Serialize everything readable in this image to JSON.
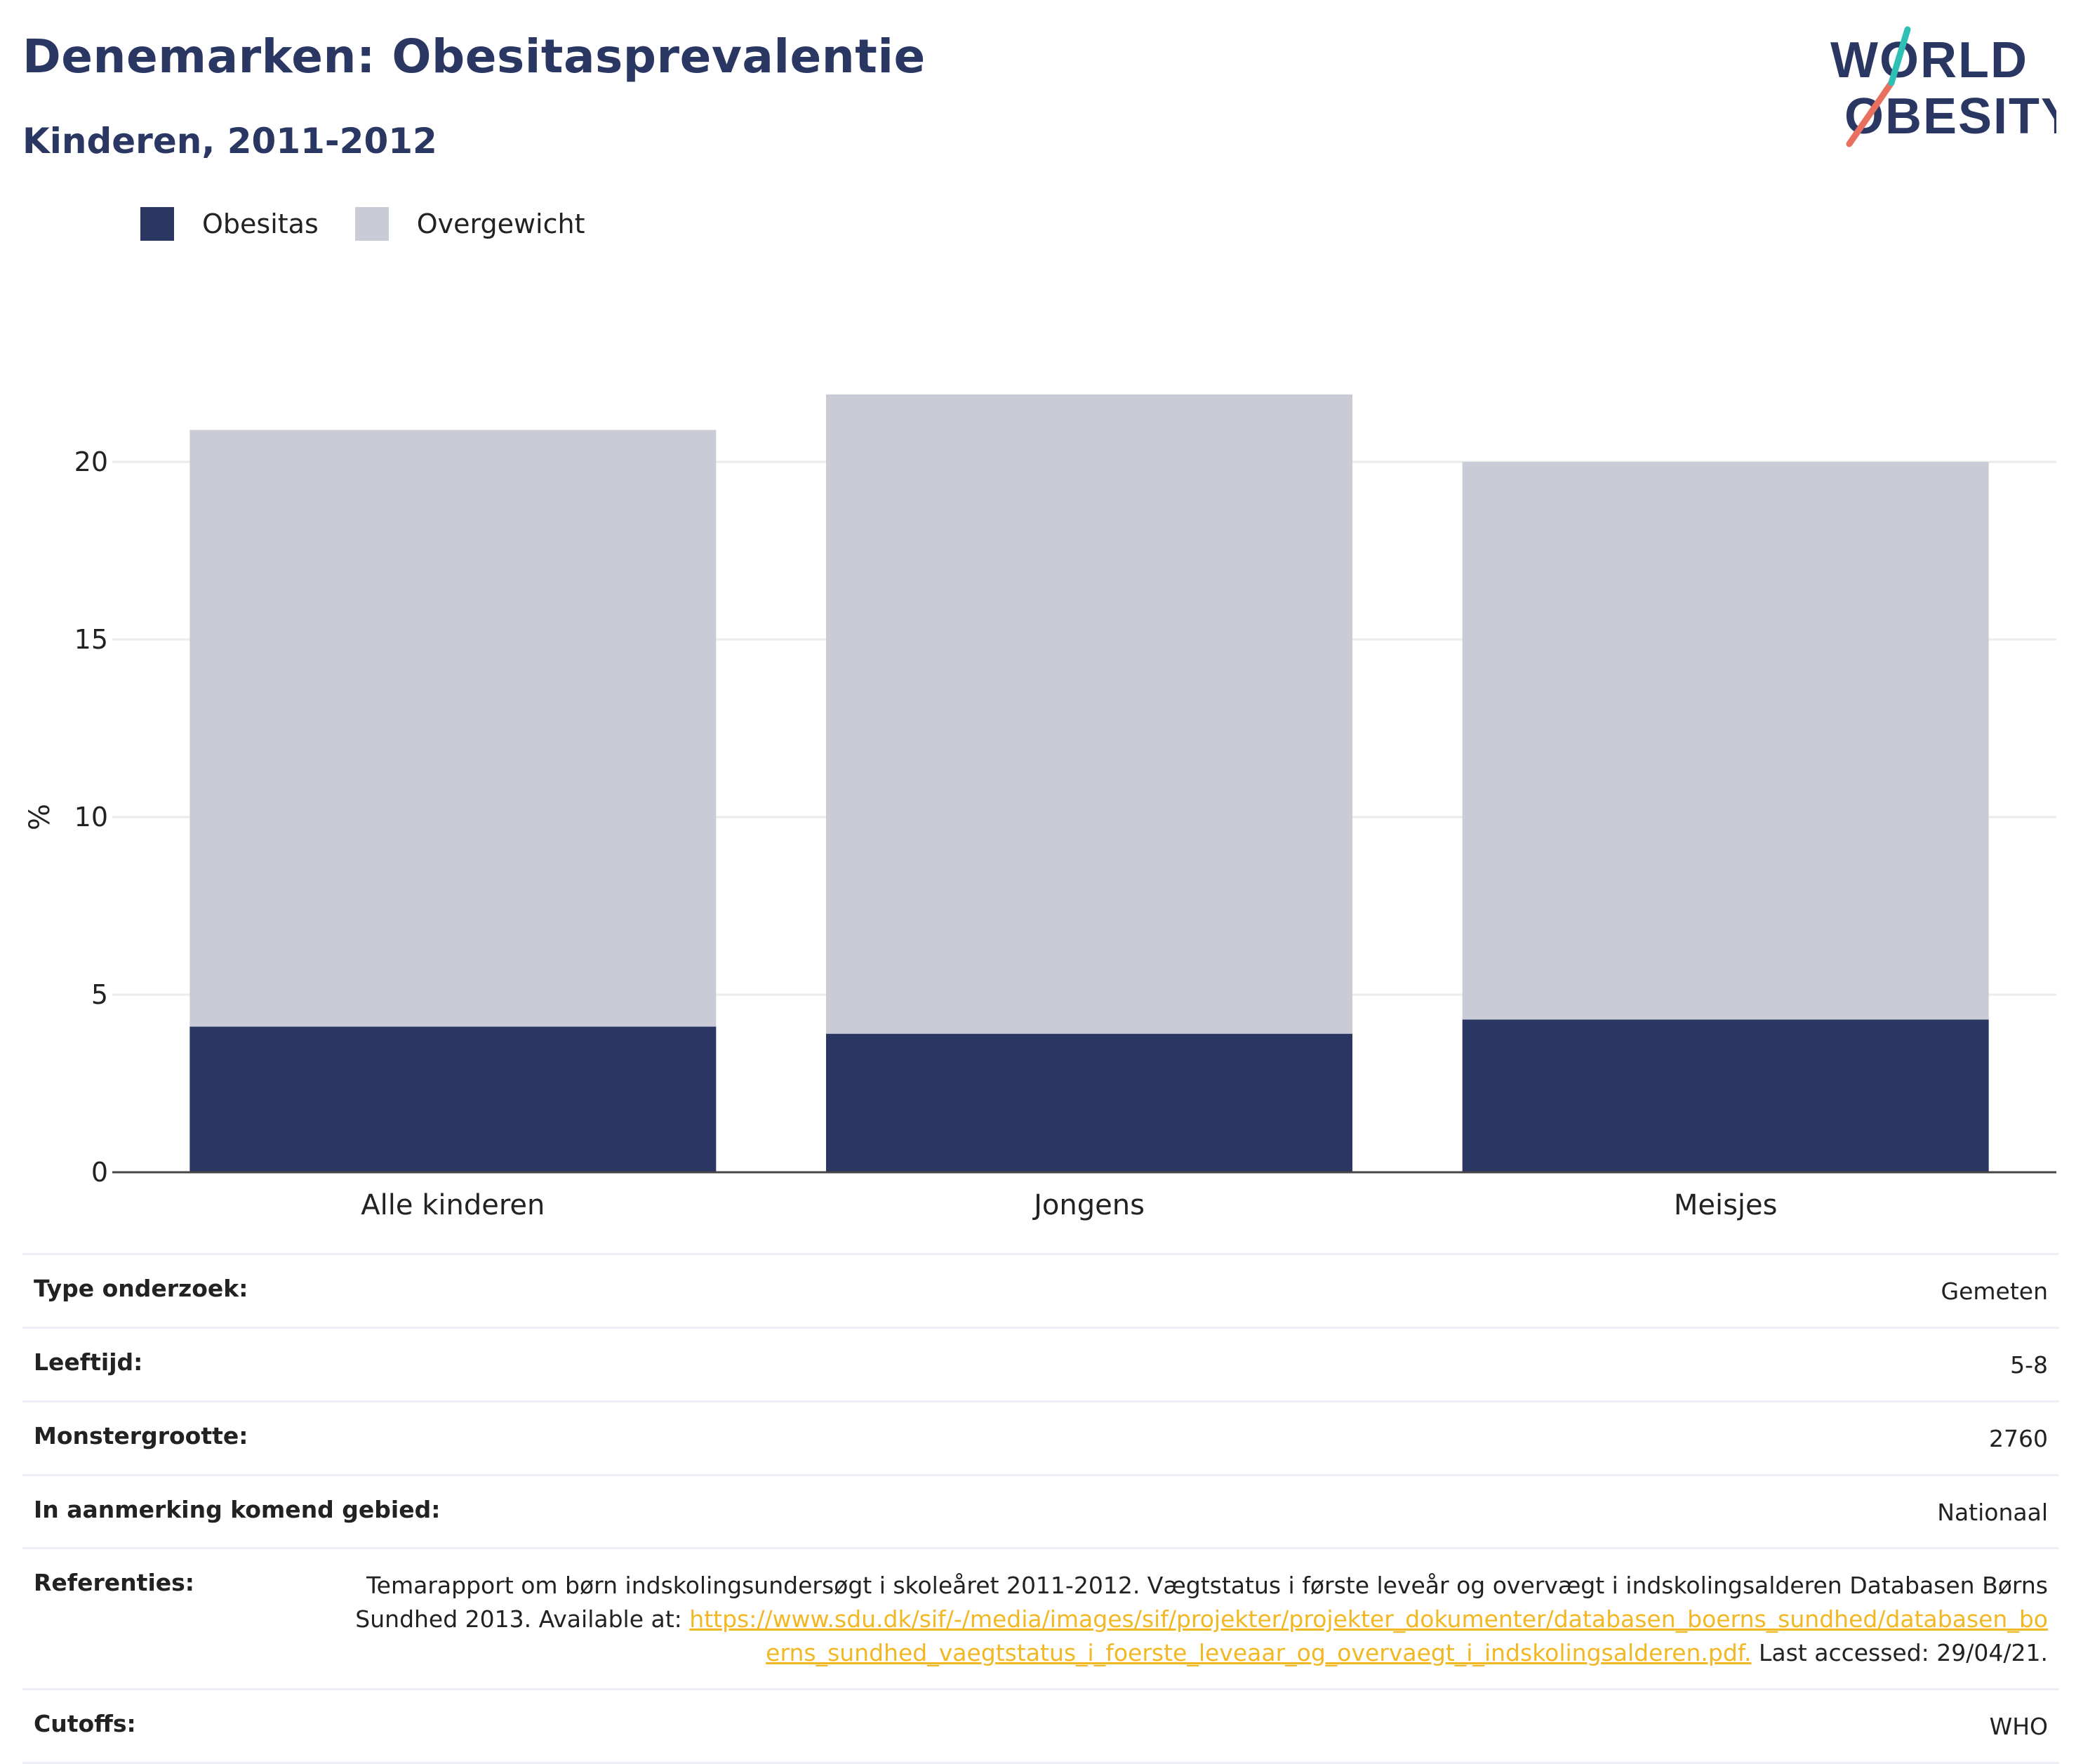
{
  "header": {
    "title": "Denemarken: Obesitasprevalentie",
    "subtitle": "Kinderen, 2011-2012",
    "logo": {
      "line1": "WORLD",
      "line2": "OBESITY"
    }
  },
  "colors": {
    "obesity": "#2a3763",
    "overweight": "#c9cbd7",
    "title": "#2a3763",
    "link": "#f2b824"
  },
  "chart_data": {
    "type": "bar",
    "stacked": true,
    "categories": [
      "Alle kinderen",
      "Jongens",
      "Meisjes"
    ],
    "series": [
      {
        "name": "Obesitas",
        "values": [
          4.1,
          3.9,
          4.3
        ],
        "color": "#2a3763"
      },
      {
        "name": "Overgewicht",
        "values": [
          16.8,
          18.0,
          15.7
        ],
        "color": "#c9cbd7"
      }
    ],
    "ylabel": "%",
    "xlabel": "",
    "ylim": [
      0,
      22
    ],
    "yticks": [
      0,
      5,
      10,
      15,
      20
    ],
    "grid": true,
    "legend": "top-left"
  },
  "info": {
    "rows": [
      {
        "key": "Type onderzoek:",
        "value": "Gemeten"
      },
      {
        "key": "Leeftijd:",
        "value": "5-8"
      },
      {
        "key": "Monstergrootte:",
        "value": "2760"
      },
      {
        "key": "In aanmerking komend gebied:",
        "value": "Nationaal"
      }
    ],
    "references": {
      "key": "Referenties:",
      "text": "Temarapport om børn indskolingsundersøgt i skoleåret 2011-2012. Vægtstatus i første leveår og overvægt i indskolingsalderen Databasen Børns Sundhed 2013. Available at: ",
      "link": "https://www.sdu.dk/sif/-/media/images/sif/projekter/projekter_dokumenter/databasen_boerns_sundhed/databasen_boerns_sundhed_vaegtstatus_i_foerste_leveaar_og_overvaegt_i_indskolingsalderen.pdf.",
      "suffix": " Last accessed: 29/04/21."
    },
    "cutoffs": {
      "key": "Cutoffs:",
      "value": "WHO"
    }
  }
}
